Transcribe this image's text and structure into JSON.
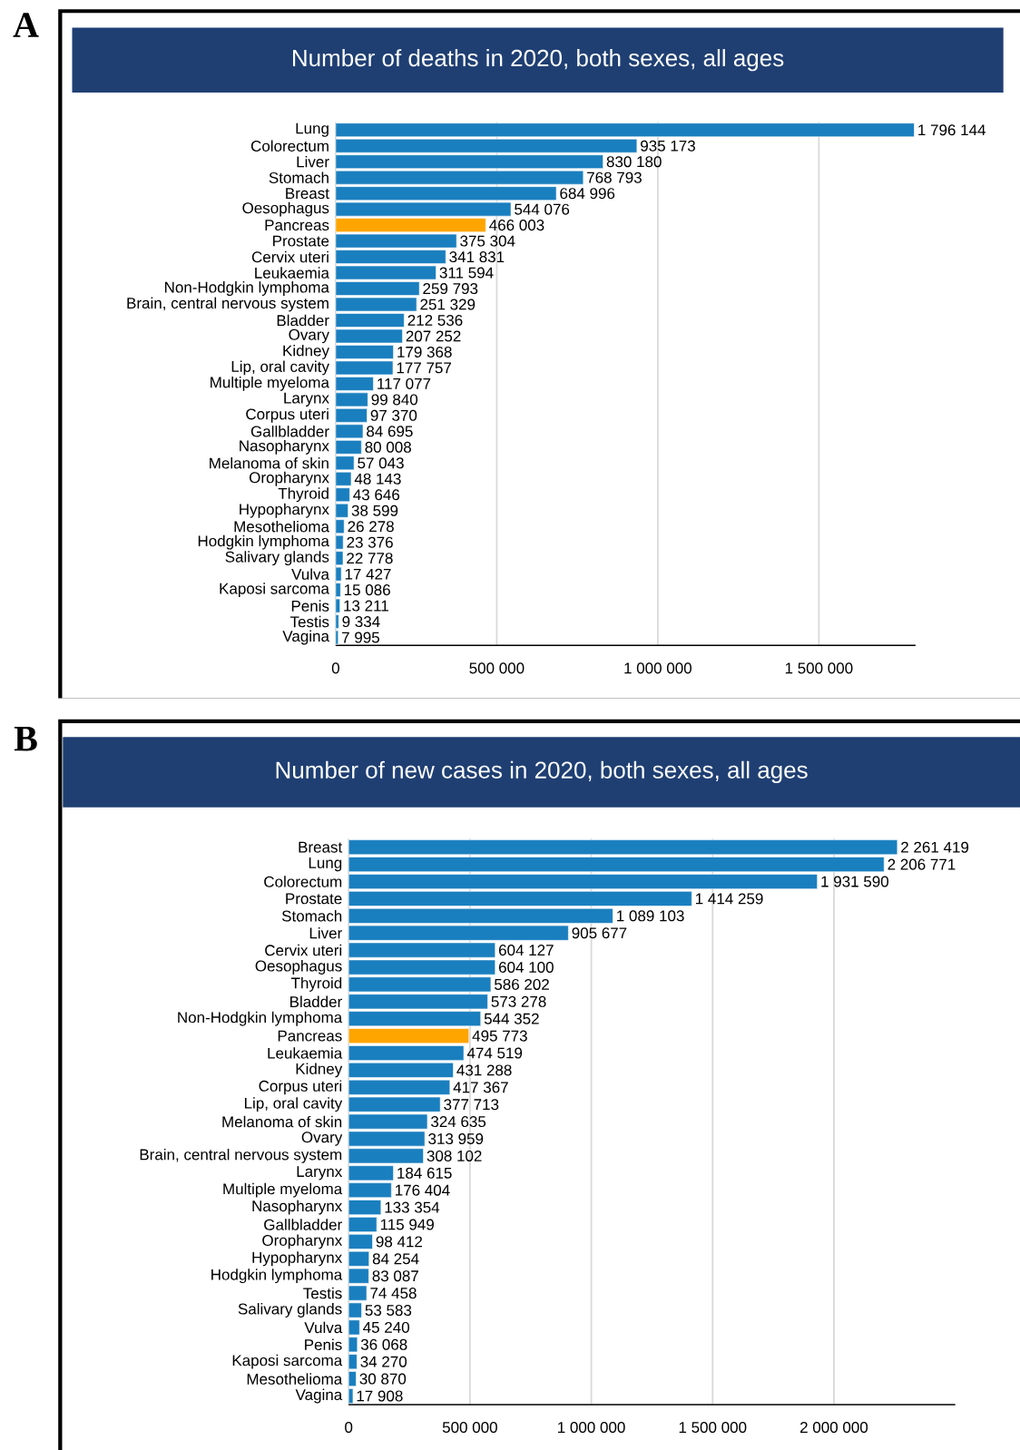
{
  "chart_data": [
    {
      "type": "bar",
      "orientation": "horizontal",
      "title": "Number of deaths in 2020, both sexes, all ages",
      "annotations": [
        "A"
      ],
      "categories": [
        "Lung",
        "Colorectum",
        "Liver",
        "Stomach",
        "Breast",
        "Oesophagus",
        "Pancreas",
        "Prostate",
        "Cervix uteri",
        "Leukaemia",
        "Non-Hodgkin lymphoma",
        "Brain, central nervous system",
        "Bladder",
        "Ovary",
        "Kidney",
        "Lip, oral cavity",
        "Multiple myeloma",
        "Larynx",
        "Corpus uteri",
        "Gallbladder",
        "Nasopharynx",
        "Melanoma of skin",
        "Oropharynx",
        "Thyroid",
        "Hypopharynx",
        "Mesothelioma",
        "Hodgkin lymphoma",
        "Salivary glands",
        "Vulva",
        "Kaposi sarcoma",
        "Penis",
        "Testis",
        "Vagina"
      ],
      "values": [
        1796144,
        935173,
        830180,
        768793,
        684996,
        544076,
        466003,
        375304,
        341831,
        311594,
        259793,
        251329,
        212536,
        207252,
        179368,
        177757,
        117077,
        99840,
        97370,
        84695,
        80008,
        57043,
        48143,
        43646,
        38599,
        26278,
        23376,
        22778,
        17427,
        15086,
        13211,
        9334,
        7995
      ],
      "value_labels": [
        "1 796 144",
        "935 173",
        "830 180",
        "768 793",
        "684 996",
        "544 076",
        "466 003",
        "375 304",
        "341 831",
        "311 594",
        "259 793",
        "251 329",
        "212 536",
        "207 252",
        "179 368",
        "177 757",
        "117 077",
        "99 840",
        "97 370",
        "84 695",
        "80 008",
        "57 043",
        "48 143",
        "43 646",
        "38 599",
        "26 278",
        "23 376",
        "22 778",
        "17 427",
        "15 086",
        "13 211",
        "9 334",
        "7 995"
      ],
      "colors": [
        "#1a7fbf",
        "#1a7fbf",
        "#1a7fbf",
        "#1a7fbf",
        "#1a7fbf",
        "#1a7fbf",
        "#ffa500",
        "#1a7fbf",
        "#1a7fbf",
        "#1a7fbf",
        "#1a7fbf",
        "#1a7fbf",
        "#1a7fbf",
        "#1a7fbf",
        "#1a7fbf",
        "#1a7fbf",
        "#1a7fbf",
        "#1a7fbf",
        "#1a7fbf",
        "#1a7fbf",
        "#1a7fbf",
        "#1a7fbf",
        "#1a7fbf",
        "#1a7fbf",
        "#1a7fbf",
        "#1a7fbf",
        "#1a7fbf",
        "#1a7fbf",
        "#1a7fbf",
        "#1a7fbf",
        "#1a7fbf",
        "#1a7fbf",
        "#1a7fbf"
      ],
      "xlim": [
        0,
        1800000
      ],
      "xticks": [
        0,
        {
          "value": 500000,
          "label": "500 000"
        },
        {
          "value": 1000000,
          "label": "1 000 000"
        },
        {
          "value": 1500000,
          "label": "1 500 000"
        }
      ],
      "grid": "x"
    },
    {
      "type": "bar",
      "orientation": "horizontal",
      "title": "Number of new cases in 2020, both sexes, all ages",
      "annotations": [
        "B"
      ],
      "categories": [
        "Breast",
        "Lung",
        "Colorectum",
        "Prostate",
        "Stomach",
        "Liver",
        "Cervix uteri",
        "Oesophagus",
        "Thyroid",
        "Bladder",
        "Non-Hodgkin lymphoma",
        "Pancreas",
        "Leukaemia",
        "Kidney",
        "Corpus uteri",
        "Lip, oral cavity",
        "Melanoma of skin",
        "Ovary",
        "Brain, central nervous system",
        "Larynx",
        "Multiple myeloma",
        "Nasopharynx",
        "Gallbladder",
        "Oropharynx",
        "Hypopharynx",
        "Hodgkin lymphoma",
        "Testis",
        "Salivary glands",
        "Vulva",
        "Penis",
        "Kaposi sarcoma",
        "Mesothelioma",
        "Vagina"
      ],
      "values": [
        2261419,
        2206771,
        1931590,
        1414259,
        1089103,
        905677,
        604127,
        604100,
        586202,
        573278,
        544352,
        495773,
        474519,
        431288,
        417367,
        377713,
        324635,
        313959,
        308102,
        184615,
        176404,
        133354,
        115949,
        98412,
        84254,
        83087,
        74458,
        53583,
        45240,
        36068,
        34270,
        30870,
        17908
      ],
      "value_labels": [
        "2 261 419",
        "2 206 771",
        "1 931 590",
        "1 414 259",
        "1 089 103",
        "905 677",
        "604 127",
        "604 100",
        "586 202",
        "573 278",
        "544 352",
        "495 773",
        "474 519",
        "431 288",
        "417 367",
        "377 713",
        "324 635",
        "313 959",
        "308 102",
        "184 615",
        "176 404",
        "133 354",
        "115 949",
        "98 412",
        "84 254",
        "83 087",
        "74 458",
        "53 583",
        "45 240",
        "36 068",
        "34 270",
        "30 870",
        "17 908"
      ],
      "colors": [
        "#1a7fbf",
        "#1a7fbf",
        "#1a7fbf",
        "#1a7fbf",
        "#1a7fbf",
        "#1a7fbf",
        "#1a7fbf",
        "#1a7fbf",
        "#1a7fbf",
        "#1a7fbf",
        "#1a7fbf",
        "#ffa500",
        "#1a7fbf",
        "#1a7fbf",
        "#1a7fbf",
        "#1a7fbf",
        "#1a7fbf",
        "#1a7fbf",
        "#1a7fbf",
        "#1a7fbf",
        "#1a7fbf",
        "#1a7fbf",
        "#1a7fbf",
        "#1a7fbf",
        "#1a7fbf",
        "#1a7fbf",
        "#1a7fbf",
        "#1a7fbf",
        "#1a7fbf",
        "#1a7fbf",
        "#1a7fbf",
        "#1a7fbf",
        "#1a7fbf"
      ],
      "xlim": [
        0,
        2500000
      ],
      "xticks": [
        0,
        {
          "value": 500000,
          "label": "500 000"
        },
        {
          "value": 1000000,
          "label": "1 000 000"
        },
        {
          "value": 1500000,
          "label": "1 500 000"
        },
        {
          "value": 2000000,
          "label": "2 000 000"
        }
      ],
      "grid": "x"
    }
  ]
}
